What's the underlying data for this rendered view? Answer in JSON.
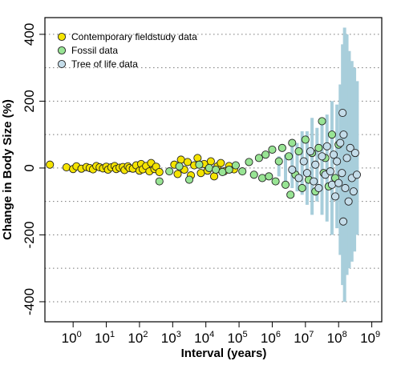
{
  "chart_data": {
    "type": "scatter",
    "title": "",
    "xlabel": "Interval (years)",
    "ylabel": "Change in Body Size (%)",
    "xscale": "log10",
    "xlim_log10": [
      -0.85,
      9.3
    ],
    "ylim": [
      -460,
      450
    ],
    "yticks": [
      -400,
      -200,
      0,
      200,
      400
    ],
    "xticks": [
      {
        "base": "10",
        "exp": "0",
        "log10": 0
      },
      {
        "base": "10",
        "exp": "1",
        "log10": 1
      },
      {
        "base": "10",
        "exp": "2",
        "log10": 2
      },
      {
        "base": "10",
        "exp": "3",
        "log10": 3
      },
      {
        "base": "10",
        "exp": "4",
        "log10": 4
      },
      {
        "base": "10",
        "exp": "5",
        "log10": 5
      },
      {
        "base": "10",
        "exp": "6",
        "log10": 6
      },
      {
        "base": "10",
        "exp": "7",
        "log10": 7
      },
      {
        "base": "10",
        "exp": "8",
        "log10": 8
      },
      {
        "base": "10",
        "exp": "9",
        "log10": 9
      }
    ],
    "grid": "horizontal dotted lines every 100",
    "legend_position": "top-left",
    "series": [
      {
        "name": "Contemporary fieldstudy data",
        "color": "#f5e400",
        "points": [
          [
            -0.7,
            10
          ],
          [
            -0.2,
            2
          ],
          [
            0.0,
            -3
          ],
          [
            0.1,
            5
          ],
          [
            0.25,
            -2
          ],
          [
            0.4,
            3
          ],
          [
            0.5,
            0
          ],
          [
            0.6,
            -4
          ],
          [
            0.7,
            6
          ],
          [
            0.8,
            2
          ],
          [
            0.9,
            -1
          ],
          [
            1.0,
            4
          ],
          [
            1.05,
            -5
          ],
          [
            1.15,
            2
          ],
          [
            1.25,
            6
          ],
          [
            1.3,
            -3
          ],
          [
            1.4,
            1
          ],
          [
            1.5,
            3
          ],
          [
            1.55,
            -6
          ],
          [
            1.65,
            5
          ],
          [
            1.7,
            0
          ],
          [
            1.8,
            -2
          ],
          [
            1.9,
            8
          ],
          [
            2.0,
            -8
          ],
          [
            2.05,
            12
          ],
          [
            2.1,
            -4
          ],
          [
            2.2,
            6
          ],
          [
            2.3,
            -10
          ],
          [
            2.35,
            15
          ],
          [
            2.45,
            -3
          ],
          [
            2.5,
            4
          ],
          [
            2.6,
            -12
          ],
          [
            3.05,
            10
          ],
          [
            3.15,
            -18
          ],
          [
            3.25,
            25
          ],
          [
            3.35,
            -5
          ],
          [
            3.45,
            18
          ],
          [
            3.55,
            -22
          ],
          [
            3.65,
            8
          ],
          [
            3.75,
            30
          ],
          [
            3.85,
            -15
          ],
          [
            3.95,
            12
          ],
          [
            4.05,
            -8
          ],
          [
            4.15,
            20
          ],
          [
            4.25,
            -25
          ],
          [
            4.35,
            5
          ],
          [
            4.45,
            15
          ],
          [
            4.55,
            -10
          ],
          [
            4.7,
            6
          ],
          [
            4.85,
            -4
          ]
        ]
      },
      {
        "name": "Fossil data",
        "color": "#98e494",
        "points": [
          [
            2.6,
            -40
          ],
          [
            2.9,
            -10
          ],
          [
            3.2,
            5
          ],
          [
            3.5,
            -35
          ],
          [
            3.8,
            10
          ],
          [
            4.1,
            0
          ],
          [
            4.3,
            -5
          ],
          [
            4.5,
            -12
          ],
          [
            4.7,
            -5
          ],
          [
            4.9,
            8
          ],
          [
            5.1,
            -10
          ],
          [
            5.3,
            18
          ],
          [
            5.45,
            -20
          ],
          [
            5.6,
            30
          ],
          [
            5.7,
            -30
          ],
          [
            5.8,
            40
          ],
          [
            5.9,
            -25
          ],
          [
            6.0,
            55
          ],
          [
            6.1,
            -40
          ],
          [
            6.2,
            20
          ],
          [
            6.3,
            60
          ],
          [
            6.4,
            -50
          ],
          [
            6.5,
            35
          ],
          [
            6.55,
            -80
          ],
          [
            6.6,
            75
          ],
          [
            6.7,
            -20
          ],
          [
            6.8,
            50
          ],
          [
            6.9,
            -60
          ],
          [
            7.0,
            85
          ],
          [
            7.1,
            -35
          ],
          [
            7.2,
            45
          ],
          [
            7.3,
            -70
          ],
          [
            7.4,
            60
          ],
          [
            7.5,
            140
          ],
          [
            7.55,
            -15
          ],
          [
            7.6,
            30
          ],
          [
            7.7,
            -55
          ],
          [
            7.8,
            100
          ],
          [
            7.9,
            -30
          ],
          [
            8.0,
            70
          ]
        ]
      },
      {
        "name": "Tree of life data",
        "color": "#c4dce9",
        "points": [
          [
            6.6,
            -5
          ],
          [
            6.8,
            -30
          ],
          [
            6.95,
            20
          ],
          [
            7.05,
            -15
          ],
          [
            7.15,
            50
          ],
          [
            7.25,
            -40
          ],
          [
            7.3,
            10
          ],
          [
            7.4,
            -60
          ],
          [
            7.5,
            35
          ],
          [
            7.6,
            -20
          ],
          [
            7.65,
            65
          ],
          [
            7.75,
            -10
          ],
          [
            7.8,
            -50
          ],
          [
            7.85,
            40
          ],
          [
            7.9,
            -85
          ],
          [
            7.95,
            20
          ],
          [
            8.0,
            -45
          ],
          [
            8.05,
            75
          ],
          [
            8.1,
            -15
          ],
          [
            8.15,
            100
          ],
          [
            8.2,
            -60
          ],
          [
            8.25,
            30
          ],
          [
            8.3,
            -100
          ],
          [
            8.35,
            60
          ],
          [
            8.4,
            -30
          ],
          [
            8.45,
            -70
          ],
          [
            8.5,
            45
          ],
          [
            8.12,
            165
          ],
          [
            8.14,
            -160
          ],
          [
            8.55,
            -20
          ]
        ]
      }
    ],
    "spread_bars": {
      "color": "#a8cedb",
      "bars": [
        [
          6.2,
          -25,
          35
        ],
        [
          6.4,
          -40,
          40
        ],
        [
          6.6,
          -60,
          70
        ],
        [
          6.75,
          -70,
          75
        ],
        [
          6.9,
          -80,
          110
        ],
        [
          7.05,
          -110,
          110
        ],
        [
          7.2,
          -140,
          150
        ],
        [
          7.35,
          -100,
          120
        ],
        [
          7.5,
          -140,
          130
        ],
        [
          7.65,
          -160,
          160
        ],
        [
          7.8,
          -200,
          200
        ],
        [
          7.95,
          -180,
          190
        ],
        [
          8.05,
          -260,
          250
        ],
        [
          8.12,
          -350,
          370
        ],
        [
          8.18,
          -400,
          420
        ],
        [
          8.25,
          -320,
          400
        ],
        [
          8.32,
          -300,
          350
        ],
        [
          8.4,
          -280,
          320
        ],
        [
          8.48,
          -250,
          300
        ],
        [
          8.56,
          -200,
          260
        ]
      ]
    }
  }
}
